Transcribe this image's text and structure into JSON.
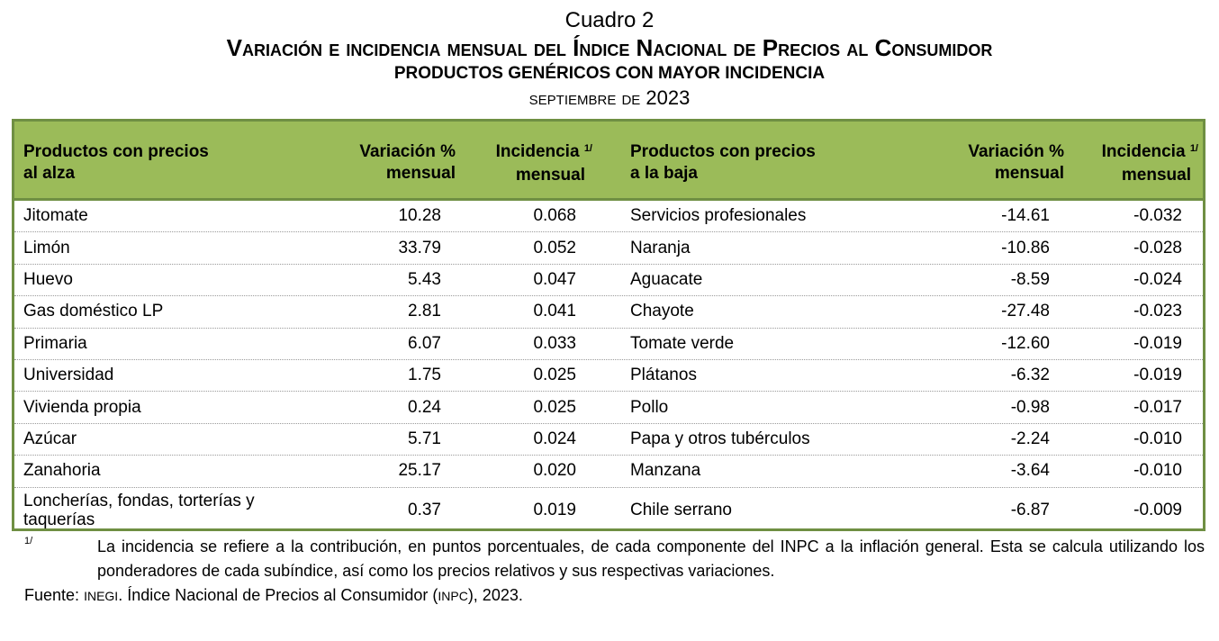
{
  "header": {
    "label": "Cuadro 2",
    "title": "Variación e incidencia mensual del Índice Nacional de Precios al Consumidor",
    "subtitle": "PRODUCTOS GENÉRICOS CON MAYOR INCIDENCIA",
    "period_month": "septiembre de",
    "period_year": "2023"
  },
  "columns": {
    "up_product": [
      "Productos con precios",
      "al alza"
    ],
    "up_var": [
      "Variación %",
      "mensual"
    ],
    "up_inc": [
      "Incidencia",
      "mensual"
    ],
    "down_product": [
      "Productos con precios",
      "a la baja"
    ],
    "down_var": [
      "Variación %",
      "mensual"
    ],
    "down_inc": [
      "Incidencia",
      "mensual"
    ],
    "inc_note": "1/"
  },
  "rows": [
    {
      "up_product": "Jitomate",
      "up_var": "10.28",
      "up_inc": "0.068",
      "down_product": "Servicios profesionales",
      "down_var": "-14.61",
      "down_inc": "-0.032"
    },
    {
      "up_product": "Limón",
      "up_var": "33.79",
      "up_inc": "0.052",
      "down_product": "Naranja",
      "down_var": "-10.86",
      "down_inc": "-0.028"
    },
    {
      "up_product": "Huevo",
      "up_var": "5.43",
      "up_inc": "0.047",
      "down_product": "Aguacate",
      "down_var": "-8.59",
      "down_inc": "-0.024"
    },
    {
      "up_product": "Gas doméstico LP",
      "up_var": "2.81",
      "up_inc": "0.041",
      "down_product": "Chayote",
      "down_var": "-27.48",
      "down_inc": "-0.023"
    },
    {
      "up_product": "Primaria",
      "up_var": "6.07",
      "up_inc": "0.033",
      "down_product": "Tomate verde",
      "down_var": "-12.60",
      "down_inc": "-0.019"
    },
    {
      "up_product": "Universidad",
      "up_var": "1.75",
      "up_inc": "0.025",
      "down_product": "Plátanos",
      "down_var": "-6.32",
      "down_inc": "-0.019"
    },
    {
      "up_product": "Vivienda propia",
      "up_var": "0.24",
      "up_inc": "0.025",
      "down_product": "Pollo",
      "down_var": "-0.98",
      "down_inc": "-0.017"
    },
    {
      "up_product": "Azúcar",
      "up_var": "5.71",
      "up_inc": "0.024",
      "down_product": "Papa y otros tubérculos",
      "down_var": "-2.24",
      "down_inc": "-0.010"
    },
    {
      "up_product": "Zanahoria",
      "up_var": "25.17",
      "up_inc": "0.020",
      "down_product": "Manzana",
      "down_var": "-3.64",
      "down_inc": "-0.010"
    },
    {
      "up_product": "Loncherías, fondas, torterías y",
      "up_product_2": "taquerías",
      "up_var": "0.37",
      "up_inc": "0.019",
      "down_product": "Chile serrano",
      "down_var": "-6.87",
      "down_inc": "-0.009"
    }
  ],
  "footnote": {
    "mark": "1/",
    "text": "La incidencia se refiere a la contribución, en puntos porcentuales, de cada componente del INPC a la inflación general. Esta se calcula utilizando los ponderadores de cada subíndice, así como los precios relativos y sus respectivas variaciones."
  },
  "source": {
    "label": "Fuente:",
    "org": "INEGI",
    "text_a": ". Índice Nacional de Precios al Consumidor (",
    "abbr": "INPC",
    "text_b": "), 2023."
  },
  "colors": {
    "header_bg": "#9bbb59",
    "border": "#6f8f43"
  }
}
